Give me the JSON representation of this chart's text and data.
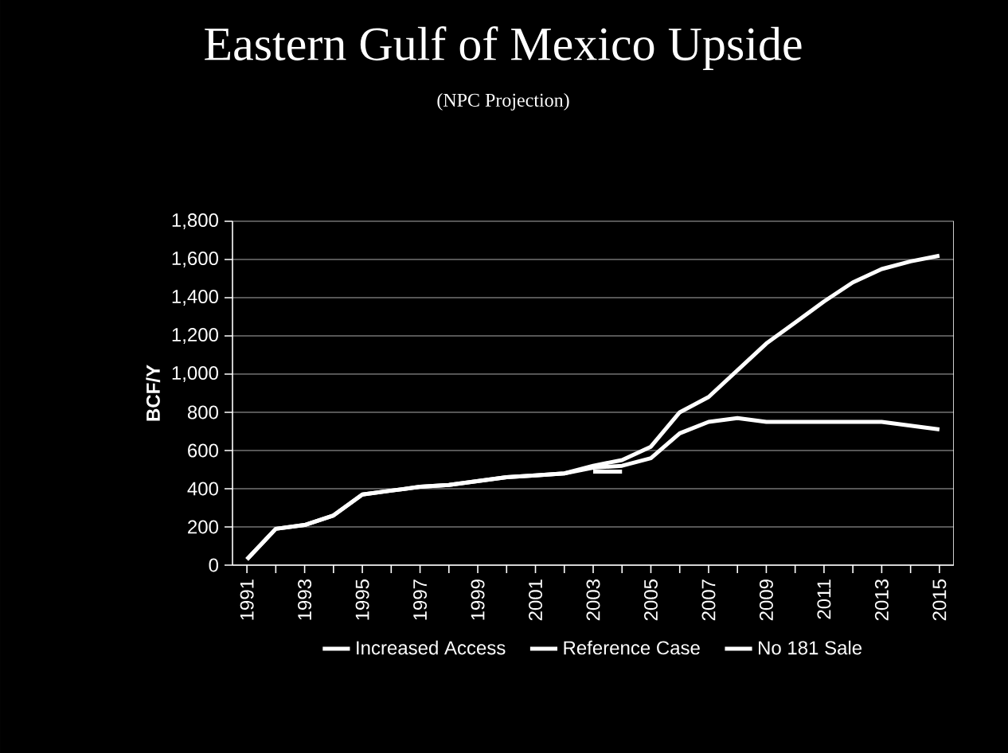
{
  "chart_data": {
    "type": "line",
    "title": "Eastern Gulf of Mexico Upside",
    "subtitle": "(NPC Projection)",
    "ylabel": "BCF/Y",
    "categories": [
      "1991",
      null,
      "1993",
      null,
      "1995",
      null,
      "1997",
      null,
      "1999",
      null,
      "2001",
      null,
      "2003",
      null,
      "2005",
      null,
      "2007",
      null,
      "2009",
      null,
      "2011",
      null,
      "2013",
      null,
      "2015"
    ],
    "series": [
      {
        "name": "Increased Access",
        "color": "#ffffff",
        "values": [
          30,
          190,
          210,
          260,
          370,
          390,
          410,
          420,
          440,
          460,
          470,
          480,
          520,
          550,
          620,
          800,
          880,
          1020,
          1160,
          1270,
          1380,
          1480,
          1550,
          1590,
          1620
        ]
      },
      {
        "name": "Reference Case",
        "color": "#ffffff",
        "values": [
          30,
          190,
          210,
          260,
          370,
          390,
          410,
          420,
          440,
          460,
          470,
          480,
          510,
          520,
          560,
          690,
          750,
          770,
          750,
          750,
          750,
          750,
          750,
          730,
          710
        ]
      },
      {
        "name": "No 181 Sale",
        "color": "#ffffff",
        "values": [
          null,
          null,
          null,
          null,
          null,
          null,
          null,
          null,
          null,
          null,
          null,
          null,
          490,
          490,
          null,
          null,
          null,
          null,
          null,
          null,
          null,
          null,
          null,
          null,
          null
        ]
      }
    ],
    "ylim": [
      0,
      1800
    ],
    "yticks": [
      0,
      200,
      400,
      600,
      800,
      {
        "value": 1000,
        "label": "1,000"
      },
      {
        "value": 1200,
        "label": "1,200"
      },
      {
        "value": 1400,
        "label": "1,400"
      },
      {
        "value": 1600,
        "label": "1,600"
      },
      {
        "value": 1800,
        "label": "1,800"
      }
    ],
    "grid": "y",
    "legend": "bottom",
    "marker": "none",
    "line_style": "solid"
  }
}
